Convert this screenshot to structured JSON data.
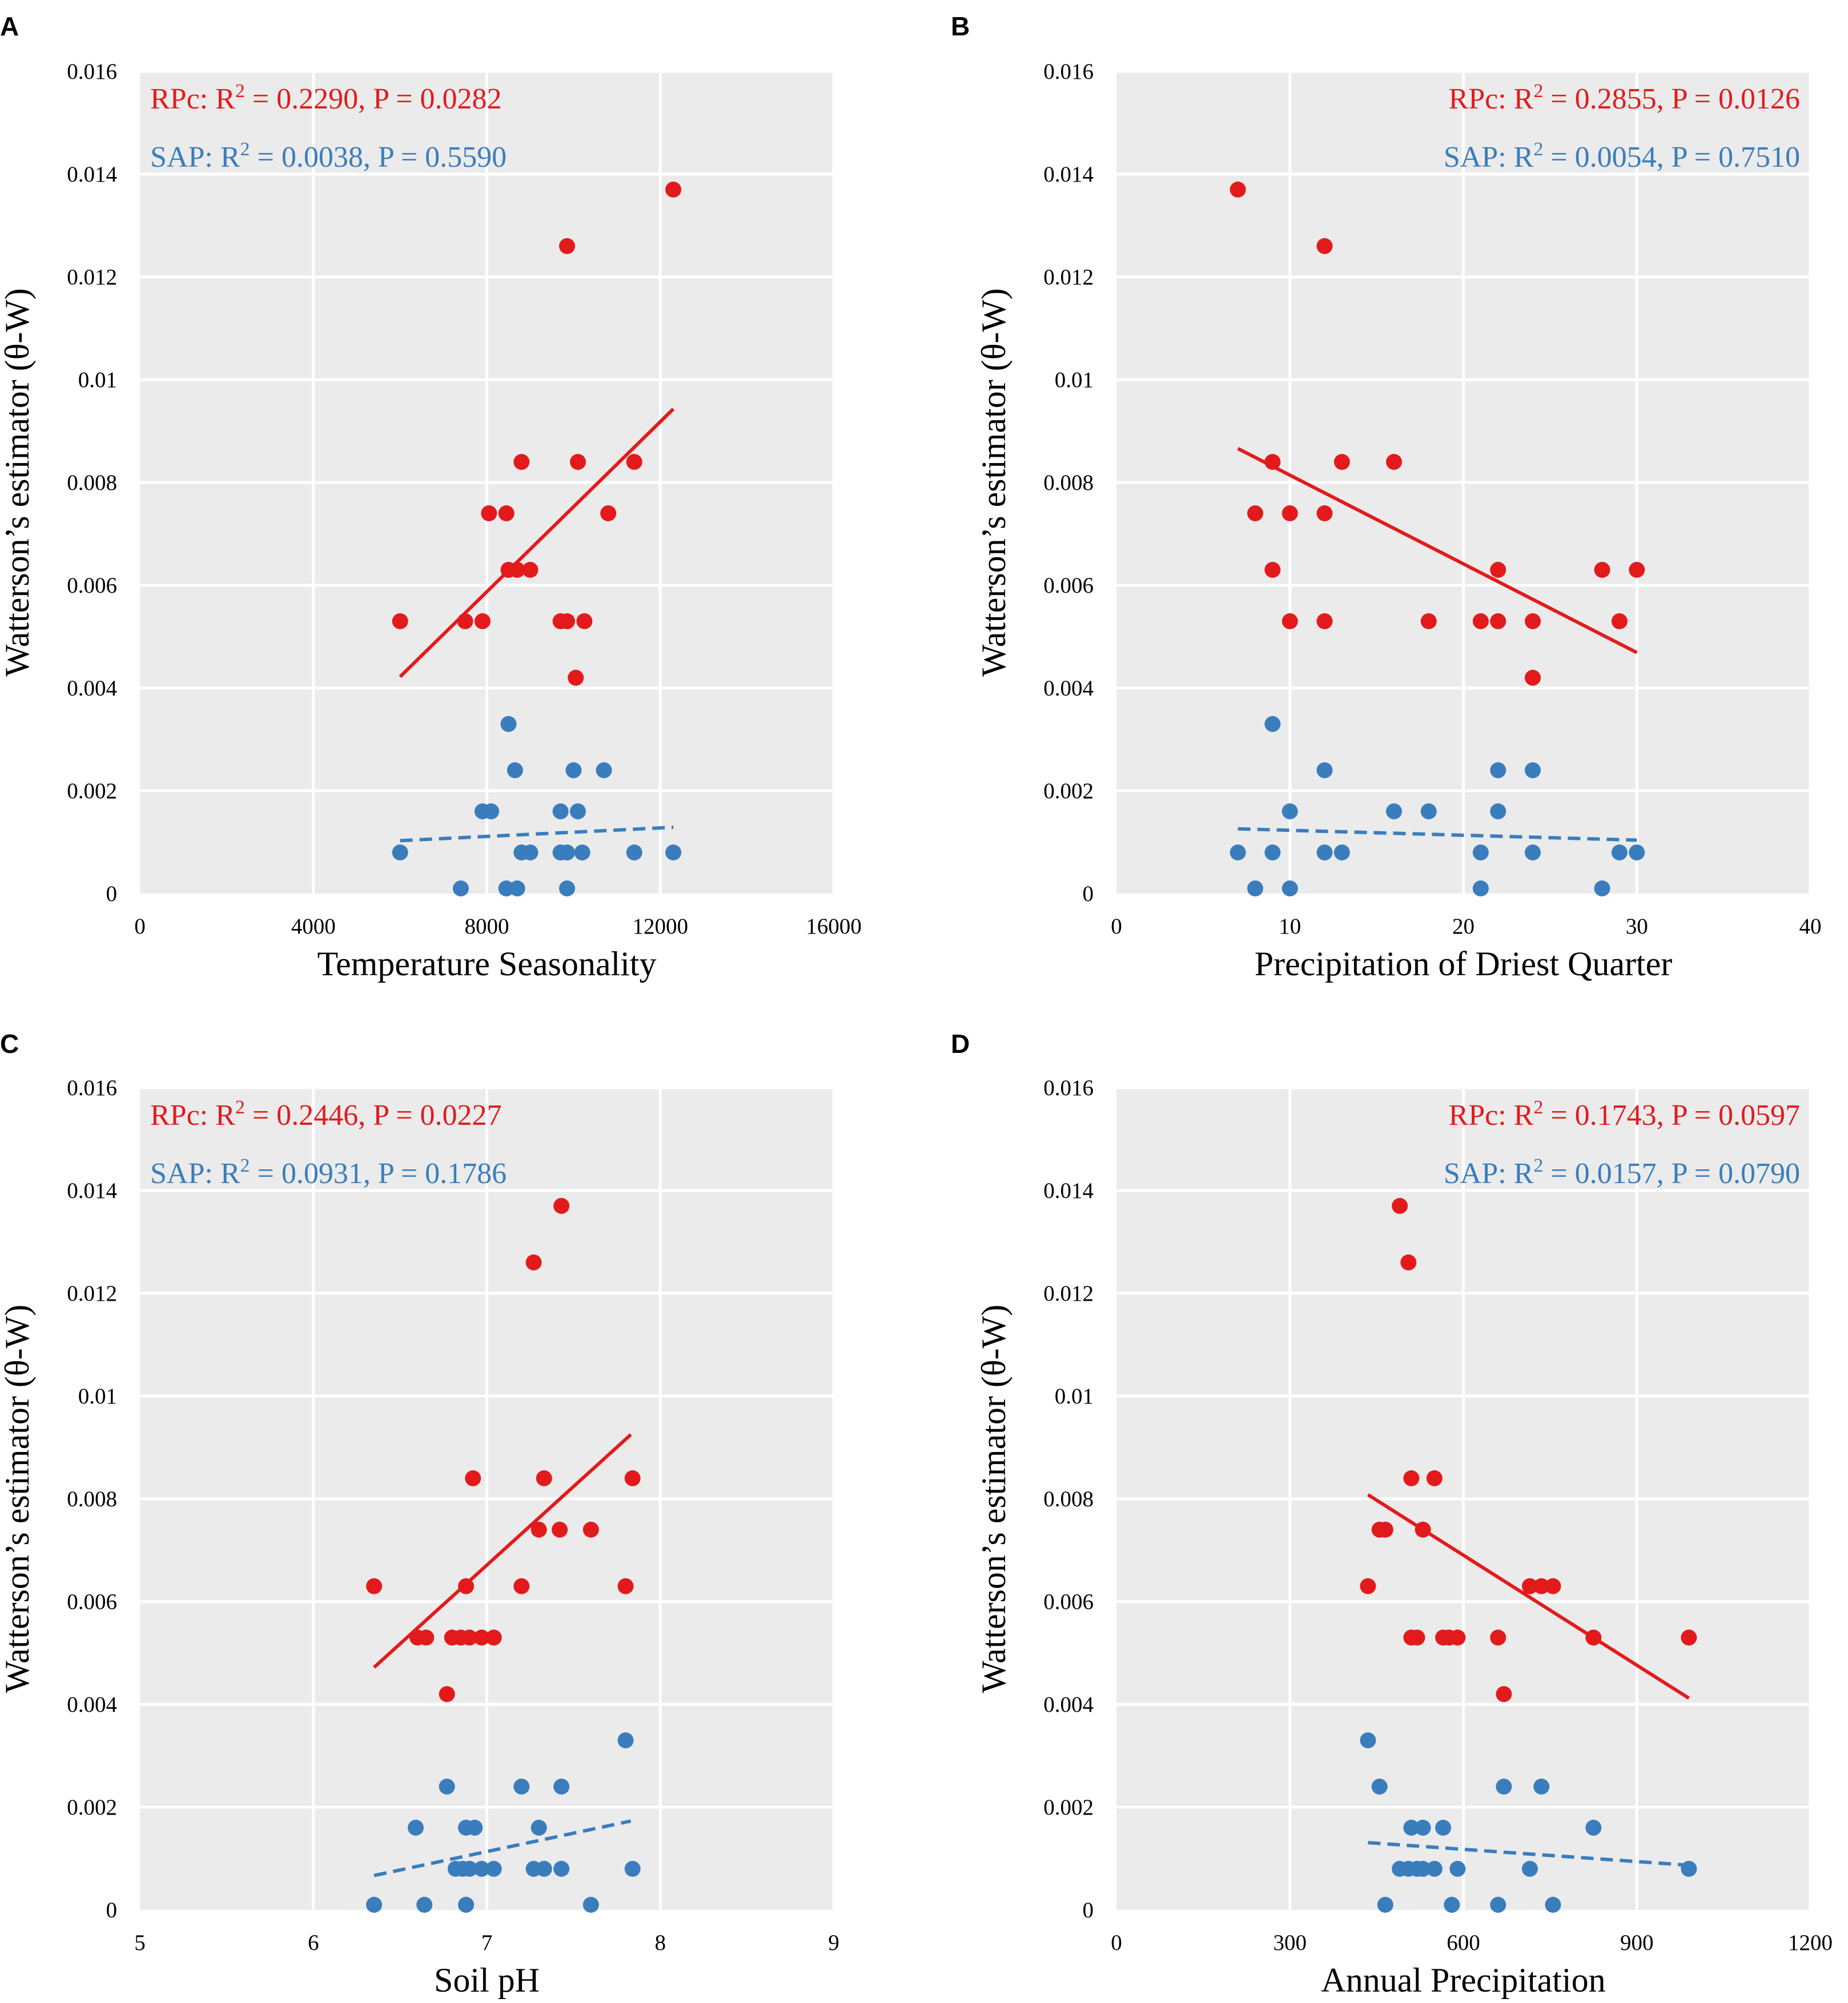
{
  "colors": {
    "rpc": "#e31a1c",
    "sap": "#3a7dbd",
    "panel": "#ebebeb",
    "grid": "#ffffff"
  },
  "chart_data": [
    {
      "panel": "A",
      "type": "scatter",
      "xlabel": "Temperature Seasonality",
      "ylabel": "Watterson’s estimator (θ-W)",
      "xlim": [
        0,
        16000
      ],
      "ylim": [
        0,
        0.016
      ],
      "xticks": [
        0,
        4000,
        8000,
        12000,
        16000
      ],
      "xtick_labels": [
        "0",
        "4000",
        "8000",
        "12000",
        "16000"
      ],
      "yticks": [
        0,
        0.002,
        0.004,
        0.006,
        0.008,
        0.01,
        0.012,
        0.014,
        0.016
      ],
      "ytick_labels": [
        "0",
        "0.002",
        "0.004",
        "0.006",
        "0.008",
        "0.01",
        "0.012",
        "0.014",
        "0.016"
      ],
      "stats_align": "left",
      "series": [
        {
          "name": "RPc",
          "color": "#e31a1c",
          "line": "solid",
          "stat_text": "RPc: R² = 0.2290, P = 0.0282",
          "points": [
            [
              6000,
              0.0053
            ],
            [
              7500,
              0.0053
            ],
            [
              7900,
              0.0053
            ],
            [
              8050,
              0.0074
            ],
            [
              8450,
              0.0074
            ],
            [
              8500,
              0.0063
            ],
            [
              8700,
              0.0063
            ],
            [
              9000,
              0.0063
            ],
            [
              8800,
              0.0084
            ],
            [
              9700,
              0.0053
            ],
            [
              9850,
              0.0053
            ],
            [
              9850,
              0.0126
            ],
            [
              10100,
              0.0084
            ],
            [
              10250,
              0.0053
            ],
            [
              10050,
              0.0042
            ],
            [
              10800,
              0.0074
            ],
            [
              11400,
              0.0084
            ],
            [
              12300,
              0.0137
            ]
          ],
          "fit": [
            [
              6000,
              0.00422
            ],
            [
              12300,
              0.00943
            ]
          ]
        },
        {
          "name": "SAP",
          "color": "#3a7dbd",
          "line": "dashed",
          "stat_text": "SAP: R² = 0.0038, P = 0.5590",
          "points": [
            [
              6000,
              0.0008
            ],
            [
              7400,
              0.0001
            ],
            [
              7900,
              0.0016
            ],
            [
              8100,
              0.0016
            ],
            [
              8500,
              0.0033
            ],
            [
              8450,
              0.0001
            ],
            [
              8700,
              0.0001
            ],
            [
              8650,
              0.0024
            ],
            [
              8800,
              0.0008
            ],
            [
              9000,
              0.0008
            ],
            [
              9700,
              0.0016
            ],
            [
              9700,
              0.0008
            ],
            [
              9850,
              0.0008
            ],
            [
              9850,
              0.0001
            ],
            [
              10000,
              0.0024
            ],
            [
              10100,
              0.0016
            ],
            [
              10200,
              0.0008
            ],
            [
              10700,
              0.0024
            ],
            [
              11400,
              0.0008
            ],
            [
              12300,
              0.0008
            ]
          ],
          "fit": [
            [
              6000,
              0.00103
            ],
            [
              12300,
              0.00129
            ]
          ]
        }
      ]
    },
    {
      "panel": "B",
      "type": "scatter",
      "xlabel": "Precipitation of Driest Quarter",
      "ylabel": "Watterson’s estimator (θ-W)",
      "xlim": [
        0,
        40
      ],
      "ylim": [
        0,
        0.016
      ],
      "xticks": [
        0,
        10,
        20,
        30,
        40
      ],
      "xtick_labels": [
        "0",
        "10",
        "20",
        "30",
        "40"
      ],
      "yticks": [
        0,
        0.002,
        0.004,
        0.006,
        0.008,
        0.01,
        0.012,
        0.014,
        0.016
      ],
      "ytick_labels": [
        "0",
        "0.002",
        "0.004",
        "0.006",
        "0.008",
        "0.01",
        "0.012",
        "0.014",
        "0.016"
      ],
      "stats_align": "right",
      "series": [
        {
          "name": "RPc",
          "color": "#e31a1c",
          "line": "solid",
          "stat_text": "RPc: R² = 0.2855, P = 0.0126",
          "points": [
            [
              7,
              0.0137
            ],
            [
              8,
              0.0074
            ],
            [
              9,
              0.0084
            ],
            [
              9,
              0.0063
            ],
            [
              10,
              0.0074
            ],
            [
              10,
              0.0053
            ],
            [
              12,
              0.0126
            ],
            [
              12,
              0.0074
            ],
            [
              12,
              0.0053
            ],
            [
              13,
              0.0084
            ],
            [
              16,
              0.0084
            ],
            [
              18,
              0.0053
            ],
            [
              21,
              0.0053
            ],
            [
              22,
              0.0063
            ],
            [
              22,
              0.0053
            ],
            [
              24,
              0.0053
            ],
            [
              24,
              0.0042
            ],
            [
              28,
              0.0063
            ],
            [
              29,
              0.0053
            ],
            [
              30,
              0.0063
            ]
          ],
          "fit": [
            [
              7,
              0.00866
            ],
            [
              30,
              0.00469
            ]
          ]
        },
        {
          "name": "SAP",
          "color": "#3a7dbd",
          "line": "dashed",
          "stat_text": "SAP: R² = 0.0054, P = 0.7510",
          "points": [
            [
              7,
              0.0008
            ],
            [
              8,
              0.0001
            ],
            [
              9,
              0.0033
            ],
            [
              9,
              0.0008
            ],
            [
              10,
              0.0016
            ],
            [
              10,
              0.0001
            ],
            [
              12,
              0.0024
            ],
            [
              12,
              0.0008
            ],
            [
              13,
              0.0008
            ],
            [
              16,
              0.0016
            ],
            [
              18,
              0.0016
            ],
            [
              21,
              0.0008
            ],
            [
              21,
              0.0001
            ],
            [
              22,
              0.0024
            ],
            [
              22,
              0.0016
            ],
            [
              24,
              0.0024
            ],
            [
              24,
              0.0008
            ],
            [
              28,
              0.0001
            ],
            [
              29,
              0.0008
            ],
            [
              30,
              0.0008
            ]
          ],
          "fit": [
            [
              7,
              0.00126
            ],
            [
              30,
              0.00104
            ]
          ]
        }
      ]
    },
    {
      "panel": "C",
      "type": "scatter",
      "xlabel": "Soil pH",
      "ylabel": "Watterson’s estimator (θ-W)",
      "xlim": [
        5,
        9
      ],
      "ylim": [
        0,
        0.016
      ],
      "xticks": [
        5,
        6,
        7,
        8,
        9
      ],
      "xtick_labels": [
        "5",
        "6",
        "7",
        "8",
        "9"
      ],
      "yticks": [
        0,
        0.002,
        0.004,
        0.006,
        0.008,
        0.01,
        0.012,
        0.014,
        0.016
      ],
      "ytick_labels": [
        "0",
        "0.002",
        "0.004",
        "0.006",
        "0.008",
        "0.01",
        "0.012",
        "0.014",
        "0.016"
      ],
      "stats_align": "left",
      "series": [
        {
          "name": "RPc",
          "color": "#e31a1c",
          "line": "solid",
          "stat_text": "RPc: R² = 0.2446, P = 0.0227",
          "points": [
            [
              6.35,
              0.0063
            ],
            [
              6.6,
              0.0053
            ],
            [
              6.65,
              0.0053
            ],
            [
              6.77,
              0.0042
            ],
            [
              6.8,
              0.0053
            ],
            [
              6.85,
              0.0053
            ],
            [
              6.88,
              0.0063
            ],
            [
              6.9,
              0.0053
            ],
            [
              6.92,
              0.0084
            ],
            [
              6.97,
              0.0053
            ],
            [
              7.04,
              0.0053
            ],
            [
              7.2,
              0.0063
            ],
            [
              7.27,
              0.0126
            ],
            [
              7.3,
              0.0074
            ],
            [
              7.33,
              0.0084
            ],
            [
              7.42,
              0.0074
            ],
            [
              7.43,
              0.0137
            ],
            [
              7.6,
              0.0074
            ],
            [
              7.8,
              0.0063
            ],
            [
              7.84,
              0.0084
            ]
          ],
          "fit": [
            [
              6.35,
              0.00472
            ],
            [
              7.83,
              0.00925
            ]
          ]
        },
        {
          "name": "SAP",
          "color": "#3a7dbd",
          "line": "dashed",
          "stat_text": "SAP: R² = 0.0931, P = 0.1786",
          "points": [
            [
              6.35,
              0.0001
            ],
            [
              6.59,
              0.0016
            ],
            [
              6.64,
              0.0001
            ],
            [
              6.77,
              0.0024
            ],
            [
              6.82,
              0.0008
            ],
            [
              6.86,
              0.0008
            ],
            [
              6.88,
              0.0016
            ],
            [
              6.88,
              0.0001
            ],
            [
              6.9,
              0.0008
            ],
            [
              6.93,
              0.0016
            ],
            [
              6.97,
              0.0008
            ],
            [
              7.04,
              0.0008
            ],
            [
              7.2,
              0.0024
            ],
            [
              7.27,
              0.0008
            ],
            [
              7.3,
              0.0016
            ],
            [
              7.33,
              0.0008
            ],
            [
              7.43,
              0.0024
            ],
            [
              7.43,
              0.0008
            ],
            [
              7.6,
              0.0001
            ],
            [
              7.8,
              0.0033
            ],
            [
              7.84,
              0.0008
            ]
          ],
          "fit": [
            [
              6.35,
              0.00067
            ],
            [
              7.83,
              0.00173
            ]
          ]
        }
      ]
    },
    {
      "panel": "D",
      "type": "scatter",
      "xlabel": "Annual Precipitation",
      "ylabel": "Watterson’s estimator (θ-W)",
      "xlim": [
        0,
        1200
      ],
      "ylim": [
        0,
        0.016
      ],
      "xticks": [
        0,
        300,
        600,
        900,
        1200
      ],
      "xtick_labels": [
        "0",
        "300",
        "600",
        "900",
        "1200"
      ],
      "yticks": [
        0,
        0.002,
        0.004,
        0.006,
        0.008,
        0.01,
        0.012,
        0.014,
        0.016
      ],
      "ytick_labels": [
        "0",
        "0.002",
        "0.004",
        "0.006",
        "0.008",
        "0.01",
        "0.012",
        "0.014",
        "0.016"
      ],
      "stats_align": "right",
      "series": [
        {
          "name": "RPc",
          "color": "#e31a1c",
          "line": "solid",
          "stat_text": "RPc: R² = 0.1743, P = 0.0597",
          "points": [
            [
              435,
              0.0063
            ],
            [
              455,
              0.0074
            ],
            [
              465,
              0.0074
            ],
            [
              490,
              0.0137
            ],
            [
              505,
              0.0126
            ],
            [
              510,
              0.0084
            ],
            [
              510,
              0.0053
            ],
            [
              520,
              0.0053
            ],
            [
              530,
              0.0074
            ],
            [
              550,
              0.0084
            ],
            [
              565,
              0.0053
            ],
            [
              575,
              0.0053
            ],
            [
              590,
              0.0053
            ],
            [
              660,
              0.0053
            ],
            [
              670,
              0.0042
            ],
            [
              715,
              0.0063
            ],
            [
              735,
              0.0063
            ],
            [
              755,
              0.0063
            ],
            [
              825,
              0.0053
            ],
            [
              990,
              0.0053
            ]
          ],
          "fit": [
            [
              435,
              0.00808
            ],
            [
              990,
              0.00412
            ]
          ]
        },
        {
          "name": "SAP",
          "color": "#3a7dbd",
          "line": "dashed",
          "stat_text": "SAP: R² = 0.0157, P = 0.0790",
          "points": [
            [
              435,
              0.0033
            ],
            [
              455,
              0.0024
            ],
            [
              465,
              0.0001
            ],
            [
              490,
              0.0008
            ],
            [
              505,
              0.0008
            ],
            [
              510,
              0.0016
            ],
            [
              520,
              0.0008
            ],
            [
              530,
              0.0016
            ],
            [
              530,
              0.0008
            ],
            [
              550,
              0.0008
            ],
            [
              565,
              0.0016
            ],
            [
              580,
              0.0001
            ],
            [
              590,
              0.0008
            ],
            [
              660,
              0.0001
            ],
            [
              670,
              0.0024
            ],
            [
              715,
              0.0008
            ],
            [
              735,
              0.0024
            ],
            [
              755,
              0.0001
            ],
            [
              825,
              0.0016
            ],
            [
              990,
              0.0008
            ]
          ],
          "fit": [
            [
              435,
              0.00131
            ],
            [
              990,
              0.00087
            ]
          ]
        }
      ]
    }
  ]
}
